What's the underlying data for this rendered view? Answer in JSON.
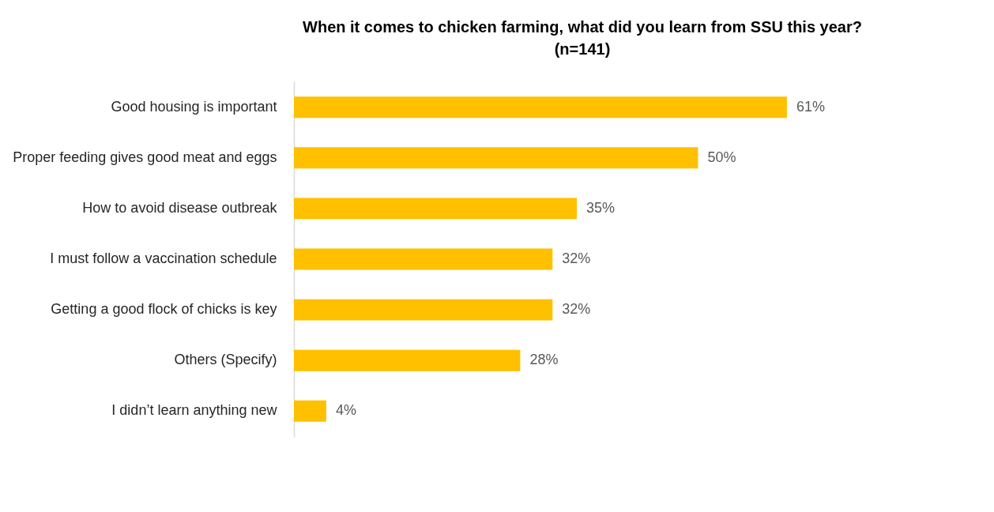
{
  "chart_data": {
    "type": "bar",
    "orientation": "horizontal",
    "title": "When it comes to chicken farming, what did you learn from SSU this year?",
    "subtitle": "(n=141)",
    "categories": [
      "Good housing is important",
      "Proper feeding gives good meat and eggs",
      "How to avoid disease outbreak",
      "I must follow a vaccination schedule",
      "Getting a good flock of chicks is key",
      "Others (Specify)",
      "I didn’t learn anything new"
    ],
    "values": [
      61,
      50,
      35,
      32,
      32,
      28,
      4
    ],
    "value_labels": [
      "61%",
      "50%",
      "35%",
      "32%",
      "32%",
      "28%",
      "4%"
    ],
    "color": "#ffc000",
    "grid": false
  }
}
